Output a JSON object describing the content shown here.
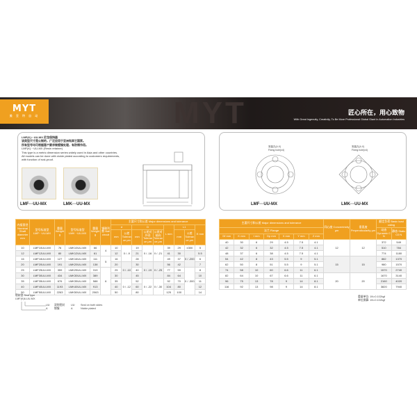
{
  "header": {
    "logo": "MYT",
    "logo_sub": "美 亚 特 自 动",
    "watermark": "MYT",
    "slogan_cn": "匠心所在，用心致物",
    "slogan_en": "With Great Ingenuity, Creativity, To Be More Professional Global Giant In Automation Industries"
  },
  "intro": {
    "lines": [
      "LMF(K)···UU-MX 尼龙保持器",
      "该类型尺寸是公制的，广泛应用于亚洲和其它国家。",
      "所有型号均可根据客户要求做镀镍处理，有防锈作用。",
      "LMF(K)···UU-MX (Resin retainer)",
      "This type is a metric dimension series widely used in Asia and other countries.",
      "All models can be done with nickle plated according to customers requirements,",
      "with function of rust-proof."
    ],
    "products": [
      "LMF···UU-MX",
      "LMK···UU-MX"
    ],
    "fixing_hole": "安装孔(4-X)\nFixing hole(x4)"
  },
  "left_table": {
    "headers": {
      "shaft": "内接直径 Nominal Shaft diameter mm",
      "lmf": "型号标准型 LMF···UU-MX",
      "w": "重量 Weight g",
      "lmk": "型号标准型 LMK···UU-MX",
      "circuit": "钢珠列数 Ball circuit",
      "major": "主要尺寸和公差 Major dimensions and tolerance",
      "d": "d",
      "D": "D",
      "L": "L mm",
      "L1": "L1",
      "E": "E mm",
      "mm": "mm",
      "tol": "公差 Tolerance μm",
      "tol_a": "公差对外径 Tolerance μm",
      "tol_b": "公差对轴向 Tolerance μm"
    },
    "rows": [
      [
        "10",
        "LMF10UU-MX",
        "76",
        "LMK10UU-MX",
        "66",
        "4",
        "10",
        "0 / -9",
        "19",
        "0 / -16",
        "0 / -21",
        "39",
        "29",
        "±300",
        "5"
      ],
      [
        "12",
        "LMF12UU-MX",
        "80",
        "LMK12UU-MX",
        "61",
        null,
        "12",
        null,
        "21",
        null,
        null,
        "41",
        "30",
        "0 / -200",
        "5.5"
      ],
      [
        "16",
        "LMF16UU-MX",
        "127",
        "LMK16UU-MX",
        "111",
        "5",
        "16",
        null,
        "28",
        null,
        null,
        "49",
        "37",
        null,
        "6"
      ],
      [
        "20",
        "LMF20UU-MX",
        "191",
        "LMK20UU-MX",
        "138",
        null,
        "20",
        "0 / -10",
        "30",
        "0 / -19",
        "0 / -25",
        "56",
        "42",
        null,
        "7"
      ],
      [
        "25",
        "LMF25UU-MX",
        "359",
        "LMK25UU-MX",
        "319",
        "6",
        "25",
        null,
        "40",
        null,
        null,
        "77",
        "59",
        "0 / -300",
        "8"
      ],
      [
        "30",
        "LMF30UU-MX",
        "434",
        "LMK30UU-MX",
        "389",
        null,
        "30",
        null,
        "45",
        null,
        null,
        "84",
        "64",
        null,
        "10"
      ],
      [
        "35",
        "LMF35UU-MX",
        "676",
        "LMK35UU-MX",
        "588",
        null,
        "35",
        "0 / -12",
        "52",
        "0 / -22",
        "0 / -30",
        "92",
        "70",
        null,
        "11"
      ],
      [
        "40",
        "LMF40UU-MX",
        "1193",
        "LMK40UU-MX",
        "913",
        null,
        "40",
        null,
        "60",
        null,
        null,
        "104",
        "80",
        null,
        "12"
      ],
      [
        "50",
        "LMF50UU-MX",
        "2263",
        "LMK50UU-MX",
        "2063",
        null,
        "50",
        null,
        "80",
        null,
        null,
        "125",
        "100",
        null,
        "14"
      ]
    ]
  },
  "right_table": {
    "headers": {
      "major": "主要尺寸和公差 Major dimensions and tolerance",
      "flange": "法兰 Flange",
      "cols": [
        "Df mm",
        "K mm",
        "t mm",
        "Dp mm",
        "X mm",
        "Y mm",
        "Z mm"
      ],
      "conc": "同心度 Concentricity μm",
      "perp": "垂直度 Perpendicularity μm",
      "load": "额定负荷 Basic load rating",
      "dyn": "动态 Dynamic C N",
      "stat": "静态 Static C0 N"
    },
    "rows": [
      [
        "40",
        "30",
        "6",
        "29",
        "4.5",
        "7.5",
        "4.1",
        "12",
        "12",
        "372",
        "549"
      ],
      [
        "42",
        "32",
        "6",
        "32",
        "4.5",
        "7.5",
        "4.1",
        null,
        null,
        "510",
        "784"
      ],
      [
        "48",
        "37",
        "6",
        "38",
        "4.5",
        "7.5",
        "4.1",
        null,
        null,
        "774",
        "1180"
      ],
      [
        "54",
        "42",
        "8",
        "43",
        "5.5",
        "9",
        "5.1",
        "15",
        "15",
        "882",
        "1370"
      ],
      [
        "62",
        "50",
        "8",
        "51",
        "5.5",
        "9",
        "5.1",
        null,
        null,
        "980",
        "1570"
      ],
      [
        "74",
        "58",
        "10",
        "60",
        "6.6",
        "11",
        "6.1",
        null,
        null,
        "1570",
        "2740"
      ],
      [
        "82",
        "64",
        "10",
        "67",
        "6.6",
        "11",
        "6.1",
        "20",
        "20",
        "1670",
        "3140"
      ],
      [
        "96",
        "75",
        "13",
        "78",
        "9",
        "14",
        "8.1",
        null,
        null,
        "2160",
        "4020"
      ],
      [
        "116",
        "92",
        "13",
        "98",
        "9",
        "14",
        "8.1",
        null,
        null,
        "3820",
        "7940"
      ]
    ]
  },
  "footer": {
    "seal_title": "密封型 Seal type",
    "example": "LMF(K)6-UU-MX",
    "uu_code": "UU",
    "uu_cn": "双侧密封",
    "uu_en": "Seal on both sides",
    "a_code": "A",
    "a_cn": "镀镍",
    "a_en": "Nickle plated",
    "unit1": "重量单位: 1N=0.102kgf",
    "unit2": "单位换算: 1N=0.102kgf"
  },
  "colors": {
    "accent": "#f0a020",
    "banner": "#2a2422"
  }
}
